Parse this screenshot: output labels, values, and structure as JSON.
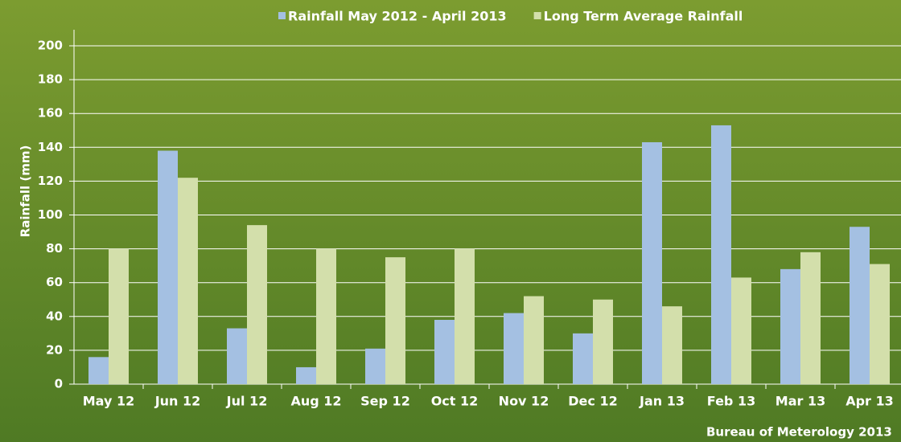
{
  "chart_data": {
    "type": "bar",
    "y_label": "Rainfall (mm)",
    "source": "Bureau of Meterology 2013",
    "categories": [
      "May 12",
      "Jun 12",
      "Jul 12",
      "Aug 12",
      "Sep 12",
      "Oct 12",
      "Nov 12",
      "Dec 12",
      "Jan 13",
      "Feb 13",
      "Mar 13",
      "Apr 13"
    ],
    "series": [
      {
        "name": "Rainfall May 2012 - April 2013",
        "color": "#a4c0e2",
        "values": [
          16,
          138,
          33,
          10,
          21,
          38,
          42,
          30,
          143,
          153,
          68,
          93
        ]
      },
      {
        "name": "Long Term Average Rainfall",
        "color": "#d3dfab",
        "values": [
          80,
          122,
          94,
          80,
          75,
          80,
          52,
          50,
          46,
          63,
          78,
          71
        ]
      }
    ],
    "ylim": [
      0,
      200
    ],
    "yticks": [
      0,
      20,
      40,
      60,
      80,
      100,
      120,
      140,
      160,
      180,
      200
    ],
    "grid": true
  }
}
